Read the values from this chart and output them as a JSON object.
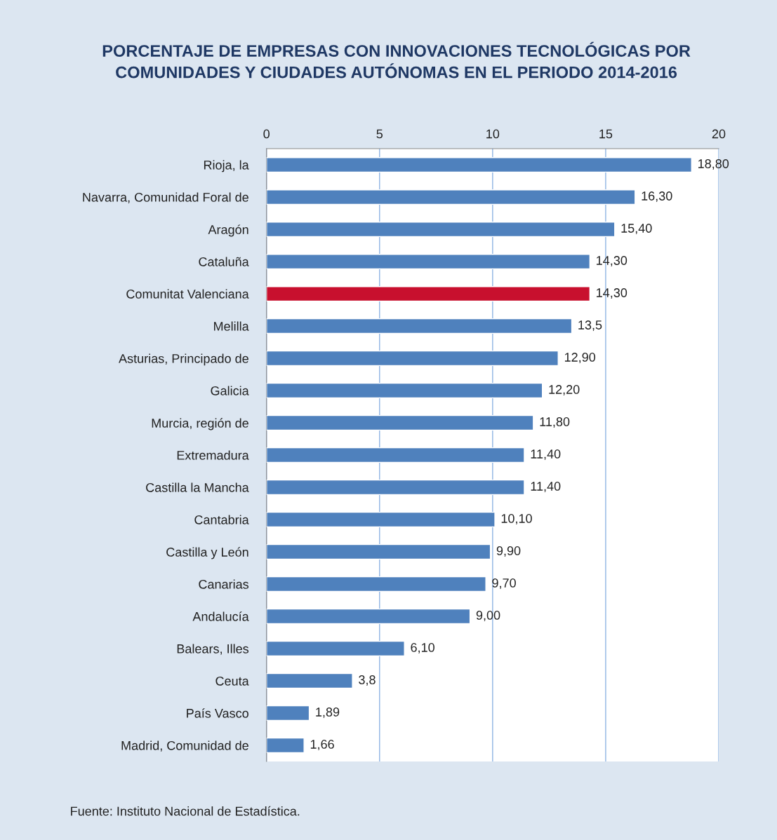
{
  "chart_data": {
    "type": "bar",
    "orientation": "horizontal",
    "title": "PORCENTAJE DE EMPRESAS CON INNOVACIONES TECNOLÓGICAS POR\nCOMUNIDADES Y CIUDADES AUTÓNOMAS EN EL PERIODO 2014-2016",
    "categories": [
      "Rioja, la",
      "Navarra, Comunidad Foral de",
      "Aragón",
      "Cataluña",
      "Comunitat Valenciana",
      "Melilla",
      "Asturias, Principado de",
      "Galicia",
      "Murcia, región de",
      "Extremadura",
      "Castilla la Mancha",
      "Cantabria",
      "Castilla y León",
      "Canarias",
      "Andalucía",
      "Balears, Illes",
      "Ceuta",
      "País Vasco",
      "Madrid, Comunidad de"
    ],
    "values": [
      18.8,
      16.3,
      15.4,
      14.3,
      14.3,
      13.5,
      12.9,
      12.2,
      11.8,
      11.4,
      11.4,
      10.1,
      9.9,
      9.7,
      9.0,
      6.1,
      3.8,
      1.89,
      1.66
    ],
    "value_labels": [
      "18,80",
      "16,30",
      "15,40",
      "14,30",
      "14,30",
      "13,5",
      "12,90",
      "12,20",
      "11,80",
      "11,40",
      "11,40",
      "10,10",
      "9,90",
      "9,70",
      "9,00",
      "6,10",
      "3,8",
      "1,89",
      "1,66"
    ],
    "colors": [
      "#4f81bd",
      "#4f81bd",
      "#4f81bd",
      "#4f81bd",
      "#c8102e",
      "#4f81bd",
      "#4f81bd",
      "#4f81bd",
      "#4f81bd",
      "#4f81bd",
      "#4f81bd",
      "#4f81bd",
      "#4f81bd",
      "#4f81bd",
      "#4f81bd",
      "#4f81bd",
      "#4f81bd",
      "#4f81bd",
      "#4f81bd"
    ],
    "xlim": [
      0,
      20
    ],
    "xticks": [
      0,
      5,
      10,
      15,
      20
    ],
    "grid": "x",
    "legend": false,
    "annotations": [
      "Fuente: Instituto Nacional de Estadística."
    ]
  }
}
